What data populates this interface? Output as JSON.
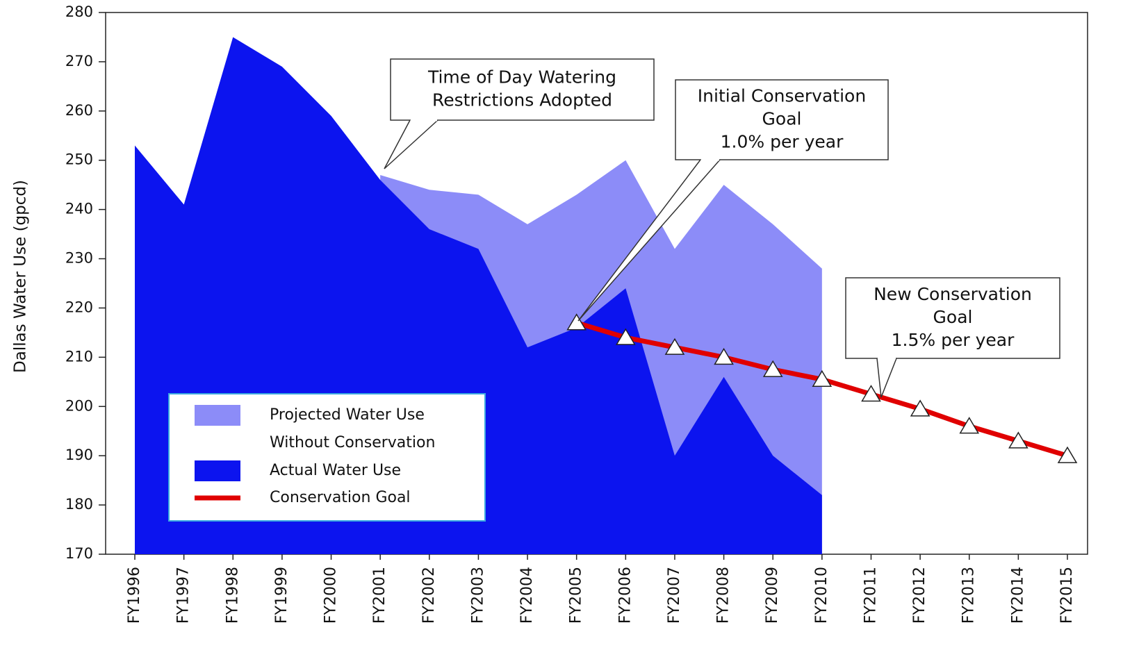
{
  "chart_data": {
    "type": "area",
    "y_label": "Dallas Water Use (gpcd)",
    "categories": [
      "FY1996",
      "FY1997",
      "FY1998",
      "FY1999",
      "FY2000",
      "FY2001",
      "FY2002",
      "FY2003",
      "FY2004",
      "FY2005",
      "FY2006",
      "FY2007",
      "FY2008",
      "FY2009",
      "FY2010",
      "FY2011",
      "FY2012",
      "FY2013",
      "FY2014",
      "FY2015"
    ],
    "series": [
      {
        "name": "Projected Water Use Without Conservation",
        "type": "area",
        "color": "#8c8cf8",
        "values": [
          null,
          null,
          null,
          null,
          null,
          247,
          244,
          243,
          237,
          243,
          250,
          232,
          245,
          237,
          228,
          null,
          null,
          null,
          null,
          null
        ]
      },
      {
        "name": "Actual Water Use",
        "type": "area",
        "color": "#0c14ef",
        "values": [
          253,
          241,
          275,
          269,
          259,
          246,
          236,
          232,
          212,
          216,
          224,
          190,
          206,
          190,
          182,
          null,
          null,
          null,
          null,
          null
        ]
      },
      {
        "name": "Conservation Goal",
        "type": "line",
        "color": "#e00000",
        "values": [
          null,
          null,
          null,
          null,
          null,
          null,
          null,
          null,
          null,
          217,
          214,
          212,
          210,
          207.5,
          205.5,
          202.5,
          199.5,
          196,
          193,
          190
        ]
      }
    ],
    "annotations": [
      {
        "lines": [
          "Time of Day Watering",
          "Restrictions Adopted"
        ]
      },
      {
        "lines": [
          "Initial Conservation",
          "Goal",
          "1.0% per year"
        ]
      },
      {
        "lines": [
          "New Conservation",
          "Goal",
          "1.5% per year"
        ]
      }
    ],
    "ylim": [
      170,
      280
    ],
    "yticks": [
      170,
      180,
      190,
      200,
      210,
      220,
      230,
      240,
      250,
      260,
      270,
      280
    ]
  }
}
